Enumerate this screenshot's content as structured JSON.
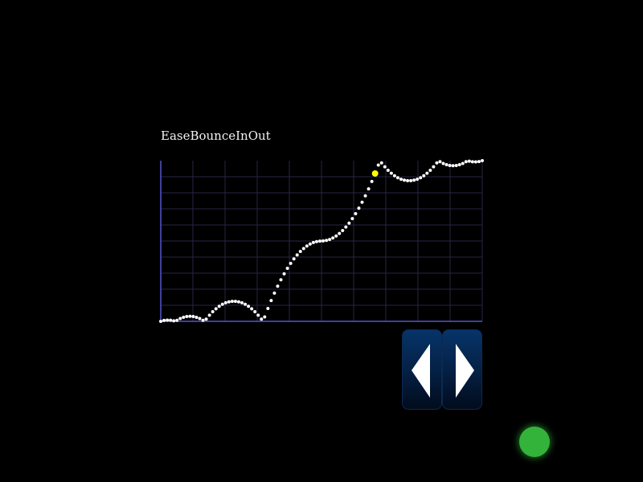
{
  "chart_data": {
    "type": "scatter",
    "title": "EaseBounceInOut",
    "xlabel": "",
    "ylabel": "",
    "xlim": [
      0,
      1
    ],
    "ylim": [
      0,
      1
    ],
    "grid": true,
    "easing": "bounceInOut",
    "sample_count": 100,
    "current_index": 66,
    "colors": {
      "axis": "#5555cc",
      "grid": "#262646",
      "point": "#ffffff",
      "current_point": "#ffff00"
    }
  },
  "controls": {
    "prev_icon": "triangle-left-icon",
    "next_icon": "triangle-right-icon",
    "button_color": "#06305f",
    "arrow_color": "#ffffff"
  },
  "status": {
    "color": "#33b33a",
    "state": "active"
  }
}
